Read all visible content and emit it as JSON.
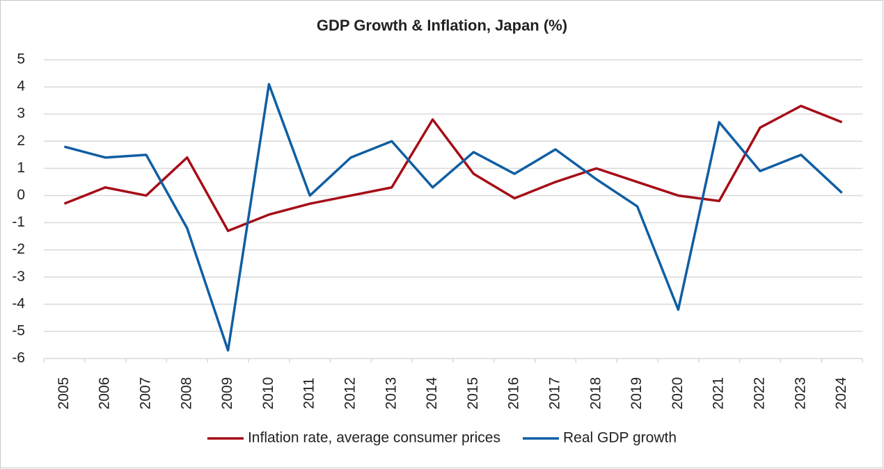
{
  "chart_data": {
    "type": "line",
    "title": "GDP Growth & Inflation, Japan (%)",
    "categories": [
      "2005",
      "2006",
      "2007",
      "2008",
      "2009",
      "2010",
      "2011",
      "2012",
      "2013",
      "2014",
      "2015",
      "2016",
      "2017",
      "2018",
      "2019",
      "2020",
      "2021",
      "2022",
      "2023",
      "2024"
    ],
    "series": [
      {
        "name": "Inflation rate, average consumer prices",
        "color": "#a50d18",
        "values": [
          -0.3,
          0.3,
          0.0,
          1.4,
          -1.3,
          -0.7,
          -0.3,
          0.0,
          0.3,
          2.8,
          0.8,
          -0.1,
          0.5,
          1.0,
          0.5,
          0.0,
          -0.2,
          2.5,
          3.3,
          2.7
        ]
      },
      {
        "name": "Real GDP growth",
        "color": "#0f5ea3",
        "values": [
          1.8,
          1.4,
          1.5,
          -1.2,
          -5.7,
          4.1,
          0.0,
          1.4,
          2.0,
          0.3,
          1.6,
          0.8,
          1.7,
          0.6,
          -0.4,
          -4.2,
          2.7,
          0.9,
          1.5,
          0.1
        ]
      }
    ],
    "ylim": [
      -6,
      5
    ],
    "yticks": [
      -6,
      -5,
      -4,
      -3,
      -2,
      -1,
      0,
      1,
      2,
      3,
      4,
      5
    ],
    "grid": true,
    "legend": "bottom"
  }
}
